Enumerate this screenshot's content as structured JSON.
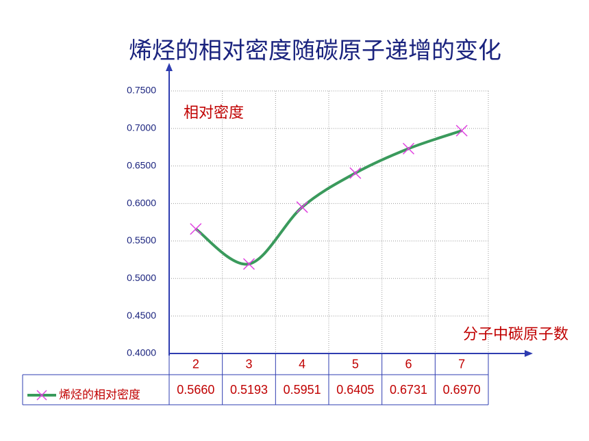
{
  "chart_data": {
    "type": "line",
    "title": "烯烃的相对密度随碳原子递增的变化",
    "y_label": "相对密度",
    "x_label": "分子中碳原子数",
    "categories": [
      "2",
      "3",
      "4",
      "5",
      "6",
      "7"
    ],
    "series": [
      {
        "name": "烯烃的相对密度",
        "color": "#3a9a5c",
        "marker_color": "#e040e0",
        "values": [
          0.566,
          0.5193,
          0.5951,
          0.6405,
          0.6731,
          0.697
        ],
        "value_labels": [
          "0.5660",
          "0.5193",
          "0.5951",
          "0.6405",
          "0.6731",
          "0.6970"
        ]
      }
    ],
    "ylim": [
      0.4,
      0.75
    ],
    "yticks": [
      {
        "value": 0.4,
        "label": "0.4000"
      },
      {
        "value": 0.45,
        "label": "0.4500"
      },
      {
        "value": 0.5,
        "label": "0.5000"
      },
      {
        "value": 0.55,
        "label": "0.5500"
      },
      {
        "value": 0.6,
        "label": "0.6000"
      },
      {
        "value": 0.65,
        "label": "0.6500"
      },
      {
        "value": 0.7,
        "label": "0.7000"
      },
      {
        "value": 0.75,
        "label": "0.7500"
      }
    ],
    "grid": true
  }
}
